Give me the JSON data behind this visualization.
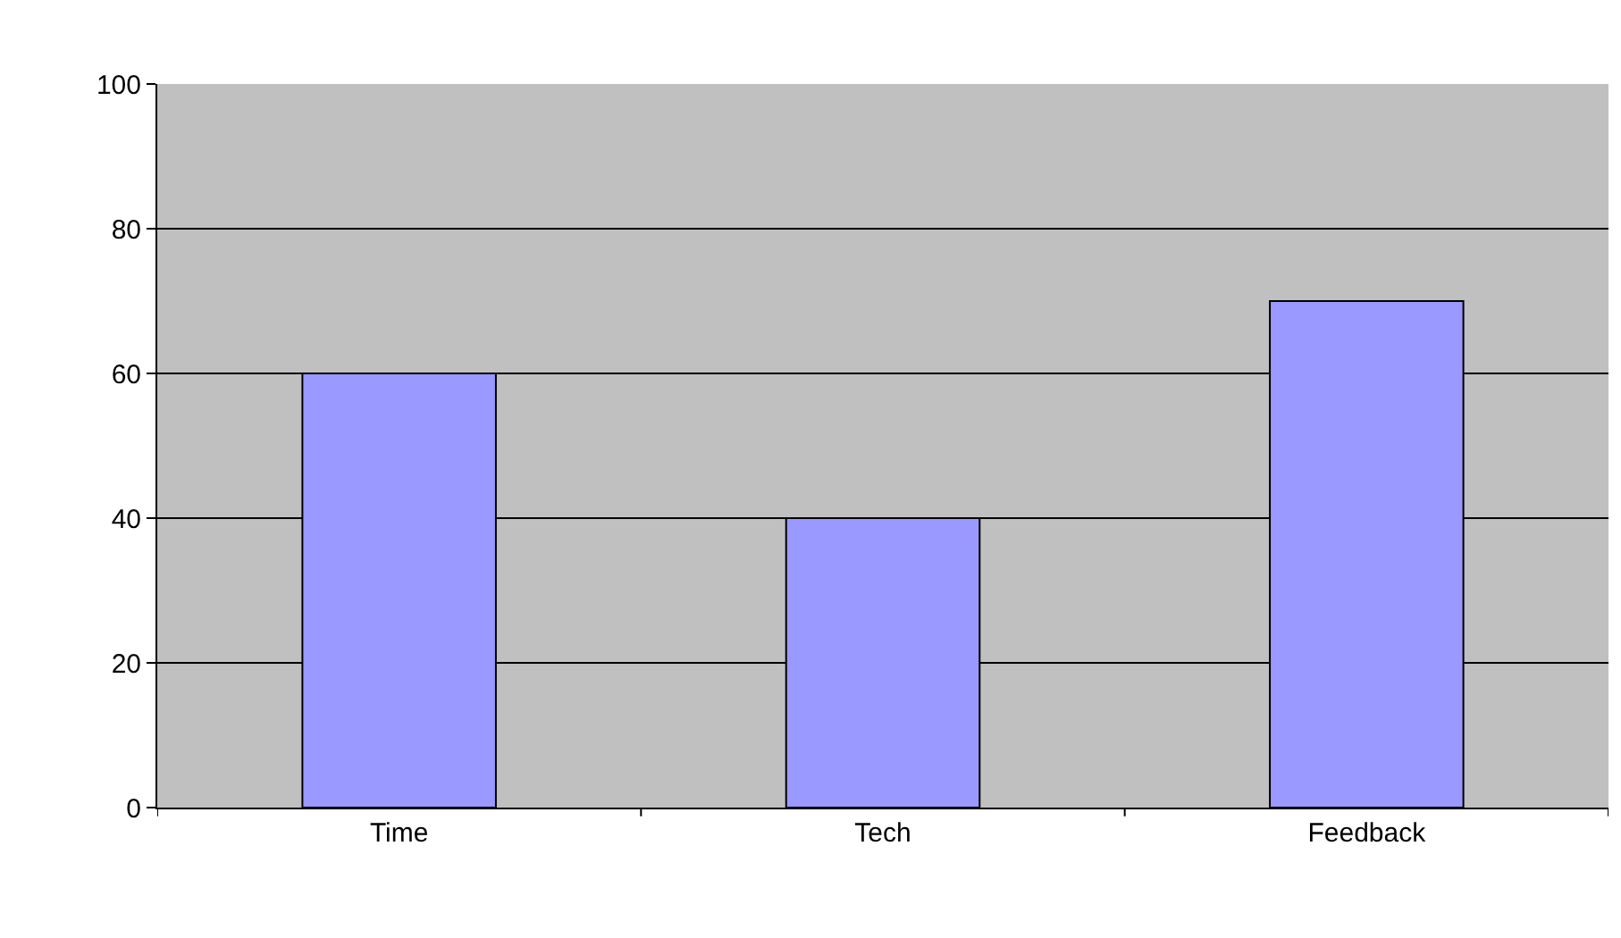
{
  "chart_data": {
    "type": "bar",
    "categories": [
      "Time",
      "Tech",
      "Feedback"
    ],
    "values": [
      60,
      40,
      70
    ],
    "color": "#9999ff",
    "ylim": [
      0,
      100
    ],
    "yticks": [
      0,
      20,
      40,
      60,
      80,
      100
    ],
    "grid": "y"
  }
}
